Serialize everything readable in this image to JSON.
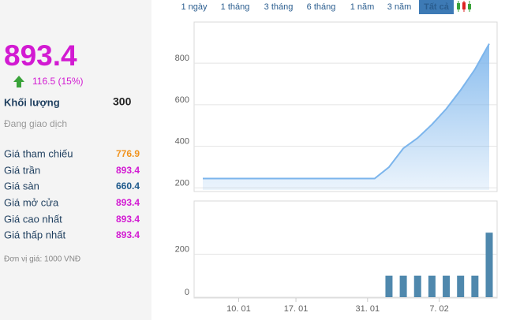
{
  "quote": {
    "price": 893.4,
    "change": "116.5 (15%)",
    "volume_label": "Khối lượng",
    "volume": 300,
    "status": "Đang giao dịch",
    "rows": [
      {
        "label": "Giá tham chiếu",
        "value": 776.9,
        "color": "#f0931e"
      },
      {
        "label": "Giá trần",
        "value": 893.4,
        "color": "#d21ad2"
      },
      {
        "label": "Giá sàn",
        "value": 660.4,
        "color": "#1f5a8c"
      },
      {
        "label": "Giá mở cửa",
        "value": 893.4,
        "color": "#d21ad2"
      },
      {
        "label": "Giá cao nhất",
        "value": 893.4,
        "color": "#d21ad2"
      },
      {
        "label": "Giá thấp nhất",
        "value": 893.4,
        "color": "#d21ad2"
      }
    ],
    "unit_note": "Đơn vị giá: 1000 VNĐ"
  },
  "range_tabs": [
    "1 ngày",
    "1 tháng",
    "3 tháng",
    "6 tháng",
    "1 năm",
    "3 năm",
    "Tất cả"
  ],
  "chart_data": [
    {
      "type": "area",
      "color": "#7cb5ec",
      "values": [
        245,
        245,
        245,
        245,
        245,
        245,
        245,
        245,
        245,
        245,
        245,
        245,
        245,
        300,
        390,
        440,
        505,
        580,
        670,
        770,
        893.4
      ],
      "ylim": [
        190,
        990
      ],
      "yticks": [
        200,
        400,
        600,
        800
      ],
      "grid": true
    },
    {
      "type": "bar",
      "color": "#4f88ad",
      "categories": [
        null,
        null,
        null,
        "10. 01",
        null,
        null,
        null,
        "17. 01",
        null,
        null,
        null,
        null,
        "31. 01",
        null,
        null,
        null,
        null,
        "7. 02",
        null,
        null,
        null
      ],
      "values": [
        null,
        null,
        null,
        null,
        null,
        null,
        null,
        null,
        null,
        null,
        null,
        null,
        null,
        100,
        100,
        100,
        100,
        100,
        100,
        100,
        300
      ],
      "ylim": [
        0,
        440
      ],
      "yticks": [
        0,
        200
      ],
      "grid": true
    }
  ]
}
